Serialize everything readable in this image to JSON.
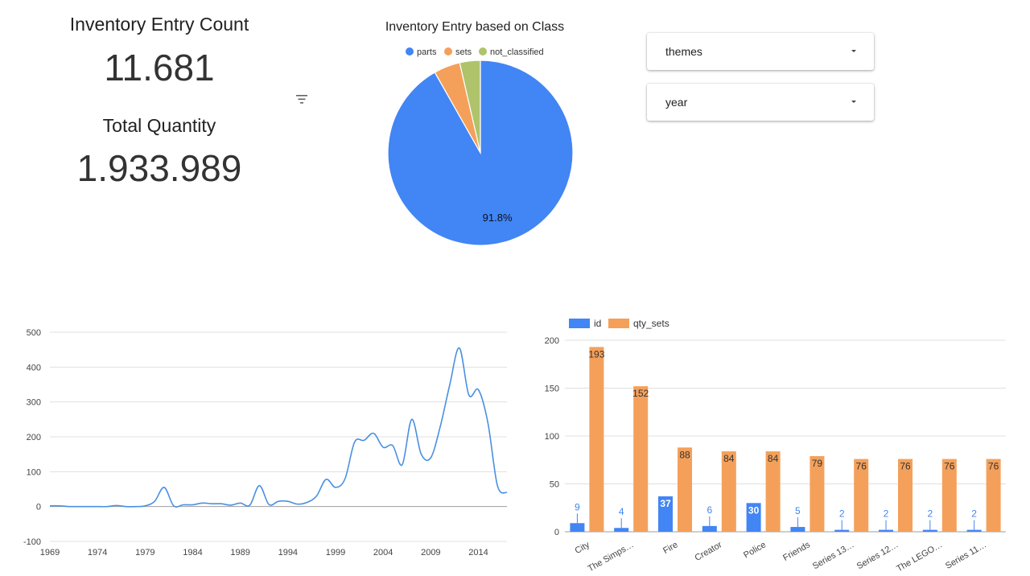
{
  "kpis": {
    "entry_count_title": "Inventory Entry Count",
    "entry_count_value": "11.681",
    "quantity_title": "Total Quantity",
    "quantity_value": "1.933.989"
  },
  "filter_icon": "filter-list-icon",
  "controls": {
    "themes_label": "themes",
    "year_label": "year"
  },
  "colors": {
    "blue": "#4285f4",
    "orange": "#f4a05a",
    "green": "#afc36b",
    "line": "#4a90e2"
  },
  "chart_data": [
    {
      "type": "pie",
      "title": "Inventory Entry based on Class",
      "legend_position": "top",
      "slices": [
        {
          "label": "parts",
          "value": 91.8,
          "color": "#4285f4",
          "data_label": "91.8%"
        },
        {
          "label": "sets",
          "value": 4.6,
          "color": "#f4a05a",
          "data_label": ""
        },
        {
          "label": "not_classified",
          "value": 3.6,
          "color": "#afc36b",
          "data_label": ""
        }
      ]
    },
    {
      "type": "line",
      "title": "",
      "xlabel": "",
      "ylabel": "",
      "xlim": [
        1969,
        2017
      ],
      "ylim": [
        -100,
        500
      ],
      "x_ticks": [
        1969,
        1974,
        1979,
        1984,
        1989,
        1994,
        1999,
        2004,
        2009,
        2014
      ],
      "y_ticks": [
        -100,
        0,
        100,
        200,
        300,
        400,
        500
      ],
      "grid": true,
      "series": [
        {
          "x": [
            1969,
            1970,
            1971,
            1972,
            1973,
            1974,
            1975,
            1976,
            1977,
            1978,
            1979,
            1980,
            1981,
            1982,
            1983,
            1984,
            1985,
            1986,
            1987,
            1988,
            1989,
            1990,
            1991,
            1992,
            1993,
            1994,
            1995,
            1996,
            1997,
            1998,
            1999,
            2000,
            2001,
            2002,
            2003,
            2004,
            2005,
            2006,
            2007,
            2008,
            2009,
            2010,
            2011,
            2012,
            2013,
            2014,
            2015,
            2016,
            2017
          ],
          "values": [
            2,
            2,
            0,
            0,
            0,
            0,
            0,
            3,
            0,
            0,
            2,
            15,
            55,
            2,
            5,
            5,
            10,
            8,
            8,
            4,
            10,
            4,
            60,
            6,
            15,
            15,
            7,
            12,
            30,
            78,
            55,
            80,
            185,
            190,
            210,
            170,
            175,
            120,
            250,
            150,
            140,
            230,
            350,
            455,
            320,
            335,
            240,
            60,
            40
          ]
        }
      ]
    },
    {
      "type": "bar",
      "title": "",
      "xlabel": "",
      "ylabel": "",
      "ylim": [
        0,
        200
      ],
      "y_ticks": [
        0,
        50,
        100,
        150,
        200
      ],
      "grid": true,
      "legend_position": "top-left",
      "categories": [
        "City",
        "The Simps…",
        "Fire",
        "Creator",
        "Police",
        "Friends",
        "Series 13…",
        "Series 12…",
        "The LEGO…",
        "Series 11…"
      ],
      "series": [
        {
          "name": "id",
          "color": "#4285f4",
          "values": [
            9,
            4,
            37,
            6,
            30,
            5,
            2,
            2,
            2,
            2
          ]
        },
        {
          "name": "qty_sets",
          "color": "#f4a05a",
          "values": [
            193,
            152,
            88,
            84,
            84,
            79,
            76,
            76,
            76,
            76
          ]
        }
      ]
    }
  ]
}
